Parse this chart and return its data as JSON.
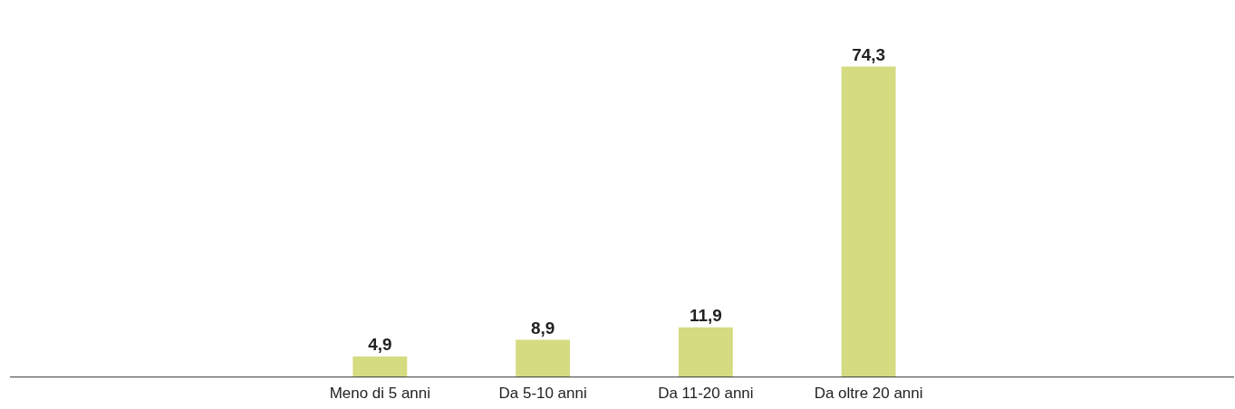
{
  "chart_data": {
    "type": "bar",
    "categories": [
      "Meno di 5 anni",
      "Da 5-10 anni",
      "Da 11-20 anni",
      "Da oltre 20 anni"
    ],
    "values": [
      4.9,
      8.9,
      11.9,
      74.3
    ],
    "value_labels": [
      "4,9",
      "8,9",
      "11,9",
      "74,3"
    ],
    "color": "#d5db80",
    "grid": false,
    "tick_labels": "x"
  }
}
